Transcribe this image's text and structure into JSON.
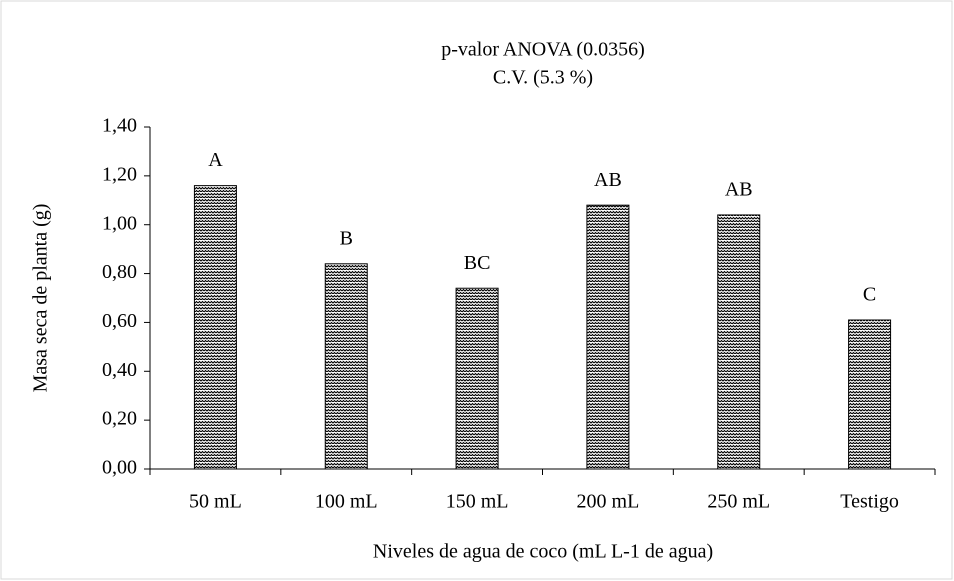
{
  "chart_data": {
    "type": "bar",
    "title": "p-valor ANOVA (0.0356)",
    "subtitle": "C.V. (5.3 %)",
    "x_label": "Niveles de agua de coco (mL L-1 de agua)",
    "y_label": "Masa seca de planta (g)",
    "categories": [
      "50 mL",
      "100 mL",
      "150 mL",
      "200 mL",
      "250 mL",
      "Testigo"
    ],
    "values": [
      1.16,
      0.84,
      0.74,
      1.08,
      1.04,
      0.61
    ],
    "annotations": [
      "A",
      "B",
      "BC",
      "AB",
      "AB",
      "C"
    ],
    "ylim": [
      0,
      1.4
    ],
    "yticks": [
      {
        "value": 0,
        "label": "0,00"
      },
      {
        "value": 0.2,
        "label": "0,20"
      },
      {
        "value": 0.4,
        "label": "0,40"
      },
      {
        "value": 0.6,
        "label": "0,60"
      },
      {
        "value": 0.8,
        "label": "0,80"
      },
      {
        "value": 1.0,
        "label": "1,00"
      },
      {
        "value": 1.2,
        "label": "1,20"
      },
      {
        "value": 1.4,
        "label": "1,40"
      }
    ],
    "grid": false
  }
}
